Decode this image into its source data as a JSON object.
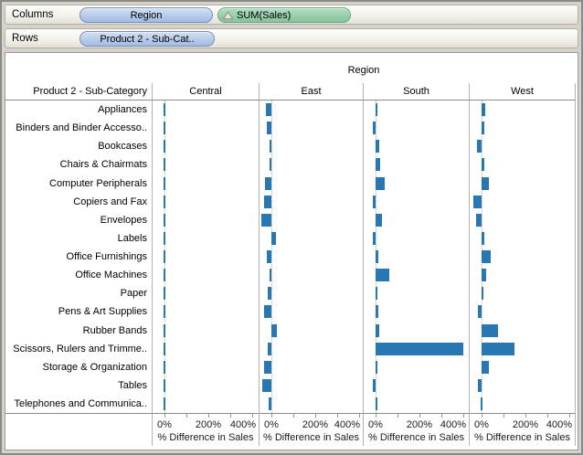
{
  "shelves": {
    "columns": {
      "label": "Columns",
      "pills": [
        {
          "text": "Region",
          "type": "dimension"
        },
        {
          "text": "SUM(Sales)",
          "type": "measure",
          "icon": "delta-triangle-icon"
        }
      ]
    },
    "rows": {
      "label": "Rows",
      "pills": [
        {
          "text": "Product 2 - Sub-Cat..",
          "type": "dimension"
        }
      ]
    }
  },
  "chart_data": {
    "type": "bar",
    "orientation": "horizontal",
    "title": "Region",
    "row_header": "Product 2 - Sub-Category",
    "categories": [
      "Appliances",
      "Binders and Binder Accesso..",
      "Bookcases",
      "Chairs & Chairmats",
      "Computer Peripherals",
      "Copiers and Fax",
      "Envelopes",
      "Labels",
      "Office Furnishings",
      "Office Machines",
      "Paper",
      "Pens & Art Supplies",
      "Rubber Bands",
      "Scissors, Rulers and Trimme..",
      "Storage & Organization",
      "Tables",
      "Telephones and Communica.."
    ],
    "series": [
      {
        "name": "Central",
        "values": [
          0,
          0,
          0,
          0,
          0,
          0,
          0,
          0,
          0,
          0,
          0,
          0,
          0,
          0,
          0,
          0,
          0
        ]
      },
      {
        "name": "East",
        "values": [
          -24,
          -19,
          -7,
          -8,
          -28,
          -32,
          -44,
          22,
          -21,
          -5,
          -15,
          -33,
          26,
          -17,
          -33,
          -43,
          -11
        ]
      },
      {
        "name": "South",
        "values": [
          2,
          -14,
          17,
          19,
          42,
          -14,
          28,
          -11,
          11,
          64,
          2,
          14,
          18,
          400,
          2,
          -14,
          2
        ]
      },
      {
        "name": "West",
        "values": [
          18,
          13,
          -22,
          14,
          33,
          -36,
          -24,
          14,
          40,
          19,
          1,
          -17,
          74,
          150,
          32,
          -17,
          0
        ]
      }
    ],
    "xlabel": "% Difference in Sales",
    "x_ticks": [
      "0%",
      "200%",
      "400%"
    ],
    "x_tick_interval_pct": 100,
    "x_range_pct": [
      -55,
      430
    ],
    "legend_position": "none",
    "grid": "zero-reference-line-only",
    "bar_color": "#2677B2",
    "zero_line_color": "#B5B5B5"
  }
}
